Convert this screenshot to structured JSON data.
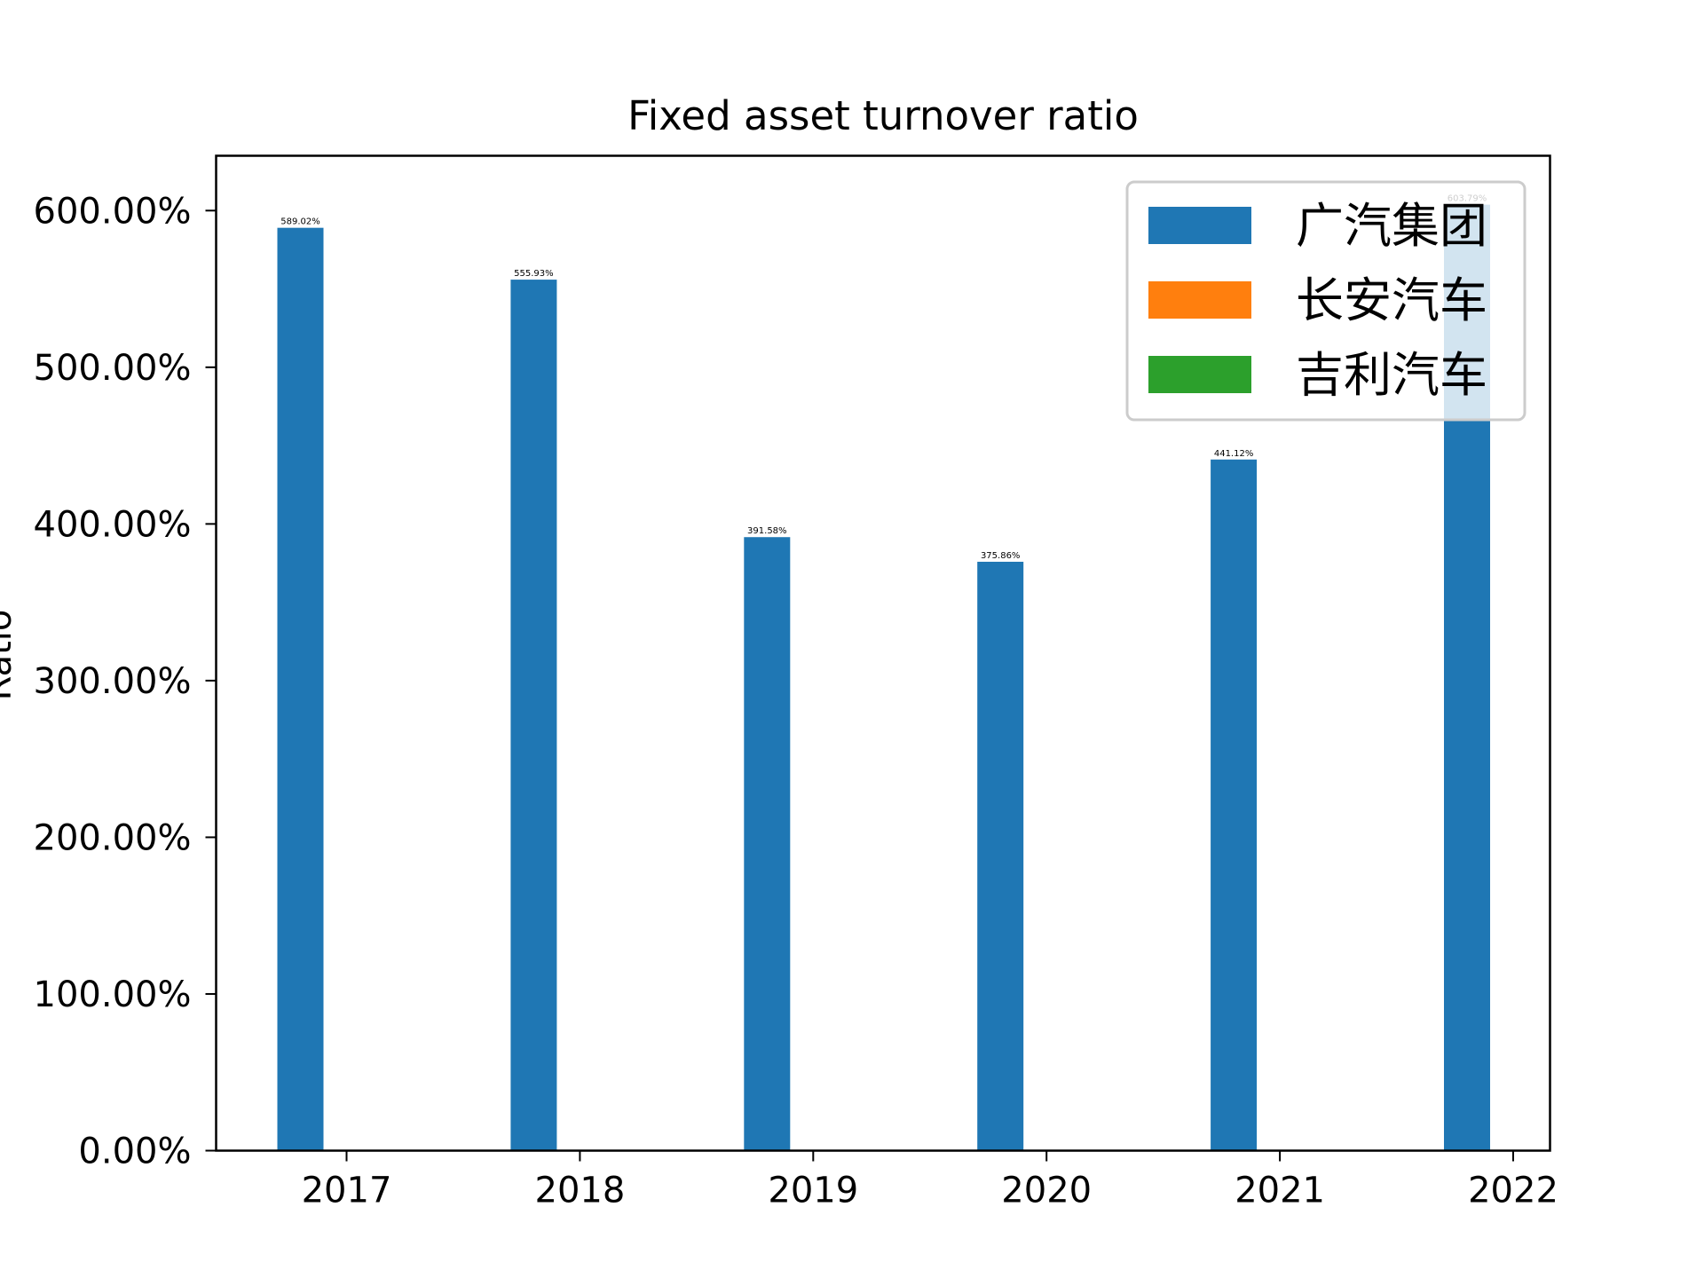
{
  "chart_data": {
    "type": "bar",
    "title": "Fixed asset turnover ratio",
    "xlabel": "",
    "ylabel": "Ratio",
    "categories": [
      "2017",
      "2018",
      "2019",
      "2020",
      "2021",
      "2022"
    ],
    "ylim": [
      0,
      6.35
    ],
    "yticks": [
      0,
      1,
      2,
      3,
      4,
      5,
      6
    ],
    "ytick_labels": [
      "0.00%",
      "100.00%",
      "200.00%",
      "300.00%",
      "400.00%",
      "500.00%",
      "600.00%"
    ],
    "grid": false,
    "legend_position": "top-right",
    "series": [
      {
        "name": "广汽集团",
        "color": "#1f77b4",
        "values": [
          5.8902,
          5.5593,
          3.9158,
          3.7586,
          4.4112,
          6.0379
        ],
        "labels": [
          "589.02%",
          "555.93%",
          "391.58%",
          "375.86%",
          "441.12%",
          "603.79%"
        ]
      },
      {
        "name": "长安汽车",
        "color": "#ff7f0e",
        "values": [
          0,
          0,
          0,
          0,
          0,
          0
        ],
        "labels": []
      },
      {
        "name": "吉利汽车",
        "color": "#2ca02c",
        "values": [
          0,
          0,
          0,
          0,
          0,
          0
        ],
        "labels": []
      }
    ]
  }
}
